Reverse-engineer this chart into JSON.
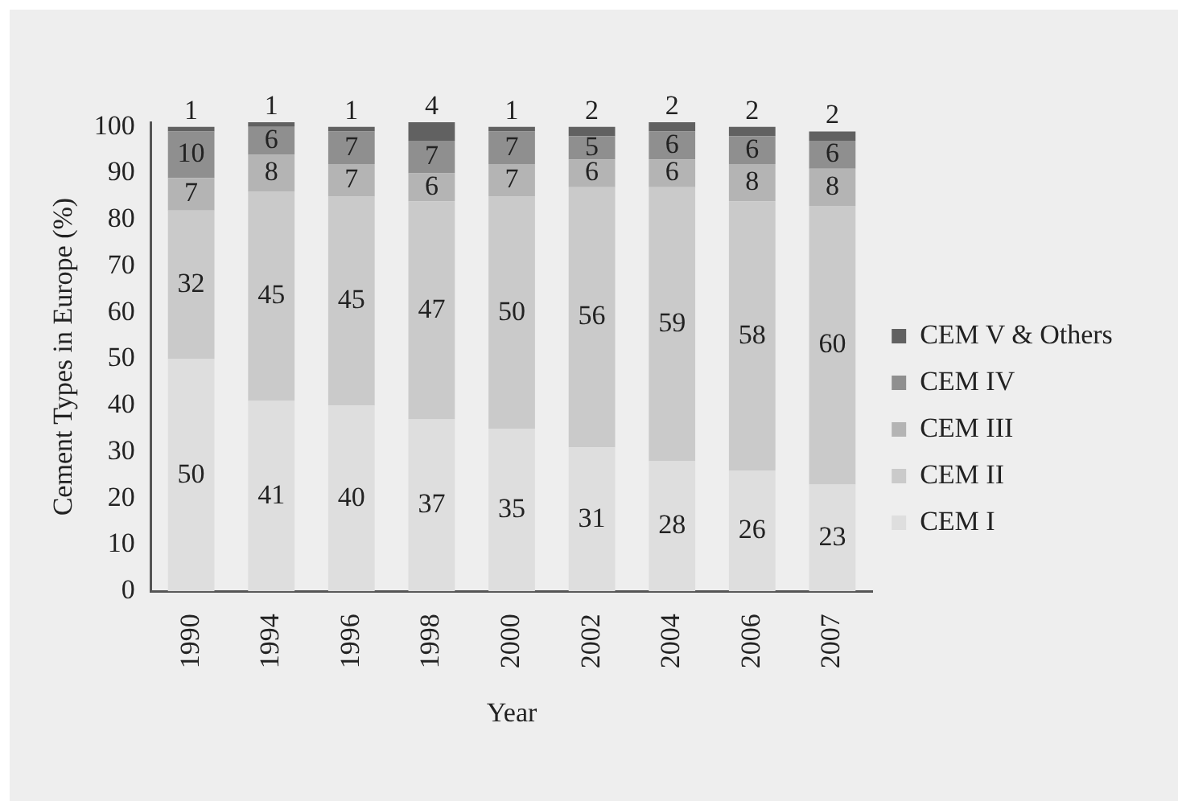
{
  "chart_data": {
    "type": "bar",
    "stacked": true,
    "xlabel": "Year",
    "ylabel": "Cement Types in Europe (%)",
    "categories": [
      "1990",
      "1994",
      "1996",
      "1998",
      "2000",
      "2002",
      "2004",
      "2006",
      "2007"
    ],
    "series": [
      {
        "name": "CEM I",
        "color": "#dedede",
        "values": [
          50,
          41,
          40,
          37,
          35,
          31,
          28,
          26,
          23
        ]
      },
      {
        "name": "CEM II",
        "color": "#cacaca",
        "values": [
          32,
          45,
          45,
          47,
          50,
          56,
          59,
          58,
          60
        ]
      },
      {
        "name": "CEM III",
        "color": "#b4b4b4",
        "values": [
          7,
          8,
          7,
          6,
          7,
          6,
          6,
          8,
          8
        ]
      },
      {
        "name": "CEM IV",
        "color": "#8f8f8f",
        "values": [
          10,
          6,
          7,
          7,
          7,
          5,
          6,
          6,
          6
        ]
      },
      {
        "name": "CEM V & Others",
        "color": "#616161",
        "values": [
          1,
          1,
          1,
          4,
          1,
          2,
          2,
          2,
          2
        ]
      }
    ],
    "ylim": [
      0,
      101
    ],
    "yticks": [
      0,
      10,
      20,
      30,
      40,
      50,
      60,
      70,
      80,
      90,
      100
    ],
    "grid": false,
    "legend": "right",
    "data_labels": true
  }
}
